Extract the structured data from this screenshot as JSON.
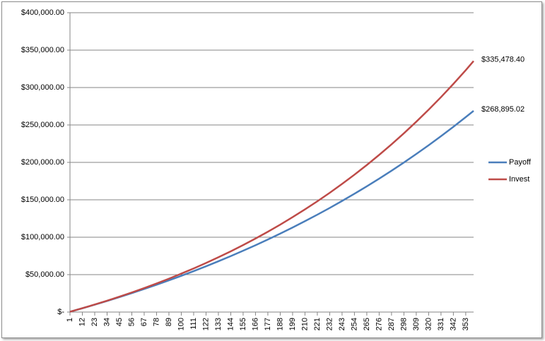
{
  "chart_data": {
    "type": "line",
    "x": [
      1,
      12,
      23,
      34,
      45,
      56,
      67,
      78,
      89,
      100,
      111,
      122,
      133,
      144,
      155,
      166,
      177,
      188,
      199,
      210,
      221,
      232,
      243,
      254,
      265,
      276,
      287,
      298,
      309,
      320,
      331,
      342,
      353,
      360
    ],
    "xlim": [
      1,
      360
    ],
    "xticks": [
      1,
      12,
      23,
      34,
      45,
      56,
      67,
      78,
      89,
      100,
      111,
      122,
      133,
      144,
      155,
      166,
      177,
      188,
      199,
      210,
      221,
      232,
      243,
      254,
      265,
      276,
      287,
      298,
      309,
      320,
      331,
      342,
      353
    ],
    "ylim": [
      0,
      400000
    ],
    "yticks": [
      {
        "value": 0,
        "label": "$-"
      },
      {
        "value": 50000,
        "label": "$50,000.00"
      },
      {
        "value": 100000,
        "label": "$100,000.00"
      },
      {
        "value": 150000,
        "label": "$150,000.00"
      },
      {
        "value": 200000,
        "label": "$200,000.00"
      },
      {
        "value": 250000,
        "label": "$250,000.00"
      },
      {
        "value": 300000,
        "label": "$300,000.00"
      },
      {
        "value": 350000,
        "label": "$350,000.00"
      },
      {
        "value": 400000,
        "label": "$400,000.00"
      }
    ],
    "grid": true,
    "legend": "right",
    "series": [
      {
        "name": "Payoff",
        "color": "#4a7ebb",
        "values": [
          416,
          5070,
          9890,
          14860,
          20010,
          25320,
          30820,
          36490,
          42350,
          48400,
          54690,
          61170,
          67860,
          74770,
          81930,
          89310,
          96940,
          104830,
          113000,
          121440,
          130140,
          139100,
          148470,
          158060,
          168000,
          178270,
          188880,
          199850,
          211200,
          222900,
          235000,
          247550,
          260470,
          268895.02
        ],
        "value_labels": [
          null,
          null,
          null,
          null,
          null,
          null,
          null,
          null,
          null,
          null,
          null,
          null,
          null,
          null,
          null,
          null,
          null,
          null,
          null,
          null,
          null,
          null,
          null,
          null,
          null,
          null,
          null,
          null,
          null,
          null,
          null,
          null,
          null,
          "$268,895.02"
        ]
      },
      {
        "name": "Invest",
        "color": "#be4b48",
        "values": [
          418,
          5130,
          10050,
          15190,
          20570,
          26180,
          32040,
          38180,
          44580,
          51350,
          58270,
          65580,
          73200,
          81190,
          89520,
          98230,
          107300,
          116840,
          126800,
          137150,
          148000,
          159300,
          171200,
          183550,
          196500,
          210000,
          224100,
          238900,
          254300,
          270400,
          287200,
          304800,
          323200,
          335478.4
        ],
        "value_labels": [
          null,
          null,
          null,
          null,
          null,
          null,
          null,
          null,
          null,
          null,
          null,
          null,
          null,
          null,
          null,
          null,
          null,
          null,
          null,
          null,
          null,
          null,
          null,
          null,
          null,
          null,
          null,
          null,
          null,
          null,
          null,
          null,
          null,
          "$335,478.40"
        ]
      }
    ]
  }
}
